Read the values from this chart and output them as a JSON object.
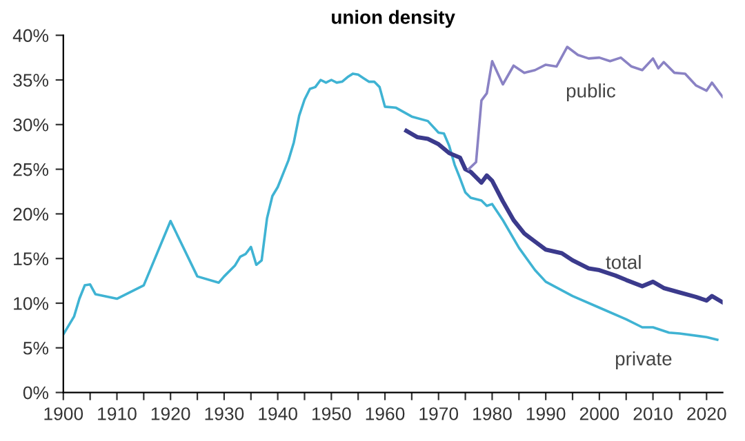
{
  "chart_data": {
    "type": "line",
    "title": "union density",
    "xlim": [
      1900,
      2023
    ],
    "ylim": [
      0,
      40
    ],
    "xticks": [
      1900,
      {
        "value": 1905,
        "label": null
      },
      1910,
      {
        "value": 1915,
        "label": null
      },
      1920,
      {
        "value": 1925,
        "label": null
      },
      1930,
      {
        "value": 1935,
        "label": null
      },
      1940,
      {
        "value": 1945,
        "label": null
      },
      1950,
      {
        "value": 1955,
        "label": null
      },
      1960,
      {
        "value": 1965,
        "label": null
      },
      1970,
      {
        "value": 1975,
        "label": null
      },
      1980,
      {
        "value": 1985,
        "label": null
      },
      1990,
      {
        "value": 1995,
        "label": null
      },
      2000,
      {
        "value": 2005,
        "label": null
      },
      2010,
      {
        "value": 2015,
        "label": null
      },
      2020
    ],
    "yticks": [
      {
        "value": 0,
        "label": "0%"
      },
      {
        "value": 5,
        "label": "5%"
      },
      {
        "value": 10,
        "label": "10%"
      },
      {
        "value": 15,
        "label": "15%"
      },
      {
        "value": 20,
        "label": "20%"
      },
      {
        "value": 25,
        "label": "25%"
      },
      {
        "value": 30,
        "label": "30%"
      },
      {
        "value": 35,
        "label": "35%"
      },
      {
        "value": 40,
        "label": "40%"
      }
    ],
    "grid": false,
    "legend": false,
    "marker": "none",
    "line_style": "solid",
    "series": [
      {
        "name": "private",
        "color": "#3fb3d3",
        "x": [
          1900,
          1902,
          1903,
          1904,
          1905,
          1906,
          1910,
          1915,
          1920,
          1925,
          1929,
          1930,
          1932,
          1933,
          1934,
          1935,
          1936,
          1937,
          1938,
          1939,
          1940,
          1942,
          1943,
          1944,
          1945,
          1946,
          1947,
          1948,
          1949,
          1950,
          1951,
          1952,
          1953,
          1954,
          1955,
          1956,
          1957,
          1958,
          1959,
          1960,
          1962,
          1965,
          1968,
          1970,
          1971,
          1972,
          1973,
          1974,
          1975,
          1976,
          1978,
          1979,
          1980,
          1982,
          1985,
          1988,
          1990,
          1995,
          2000,
          2005,
          2008,
          2010,
          2013,
          2015,
          2020,
          2022
        ],
        "values": [
          6.5,
          8.5,
          10.5,
          12,
          12.1,
          11,
          10.5,
          12,
          19.2,
          13,
          12.3,
          13,
          14.2,
          15.2,
          15.5,
          16.3,
          14.3,
          14.8,
          19.5,
          22,
          23,
          26,
          28,
          31,
          32.8,
          34,
          34.2,
          35,
          34.7,
          35,
          34.7,
          34.8,
          35.3,
          35.7,
          35.6,
          35.2,
          34.8,
          34.8,
          34.2,
          32,
          31.9,
          30.9,
          30.4,
          29.1,
          29,
          27.6,
          25.5,
          24,
          22.4,
          21.8,
          21.5,
          20.9,
          21.1,
          19.3,
          16.2,
          13.7,
          12.4,
          10.8,
          9.5,
          8.2,
          7.3,
          7.3,
          6.7,
          6.6,
          6.2,
          5.9
        ]
      },
      {
        "name": "total",
        "color": "#3b3a8c",
        "x": [
          1964,
          1966,
          1968,
          1970,
          1972,
          1974,
          1975,
          1976,
          1978,
          1979,
          1980,
          1982,
          1984,
          1986,
          1988,
          1990,
          1993,
          1995,
          1998,
          2000,
          2003,
          2005,
          2008,
          2010,
          2012,
          2015,
          2018,
          2020,
          2021,
          2023
        ],
        "values": [
          29.3,
          28.6,
          28.4,
          27.8,
          26.8,
          26.3,
          25,
          24.7,
          23.5,
          24.3,
          23.7,
          21.4,
          19.3,
          17.8,
          16.9,
          16,
          15.6,
          14.8,
          13.9,
          13.7,
          13.1,
          12.6,
          11.9,
          12.4,
          11.7,
          11.2,
          10.7,
          10.3,
          10.8,
          10.1
        ]
      },
      {
        "name": "public",
        "color": "#8a82c4",
        "x": [
          1975.6,
          1977,
          1978,
          1979,
          1980,
          1981,
          1982,
          1984,
          1986,
          1988,
          1990,
          1992,
          1994,
          1996,
          1998,
          2000,
          2002,
          2004,
          2006,
          2008,
          2010,
          2011,
          2012,
          2014,
          2016,
          2018,
          2020,
          2021,
          2023
        ],
        "values": [
          25,
          25.8,
          32.7,
          33.5,
          37.1,
          35.8,
          34.5,
          36.6,
          35.8,
          36.1,
          36.7,
          36.5,
          38.7,
          37.8,
          37.4,
          37.5,
          37.1,
          37.5,
          36.5,
          36.1,
          37.4,
          36.3,
          37,
          35.8,
          35.7,
          34.4,
          33.8,
          34.7,
          33.1
        ]
      }
    ]
  }
}
